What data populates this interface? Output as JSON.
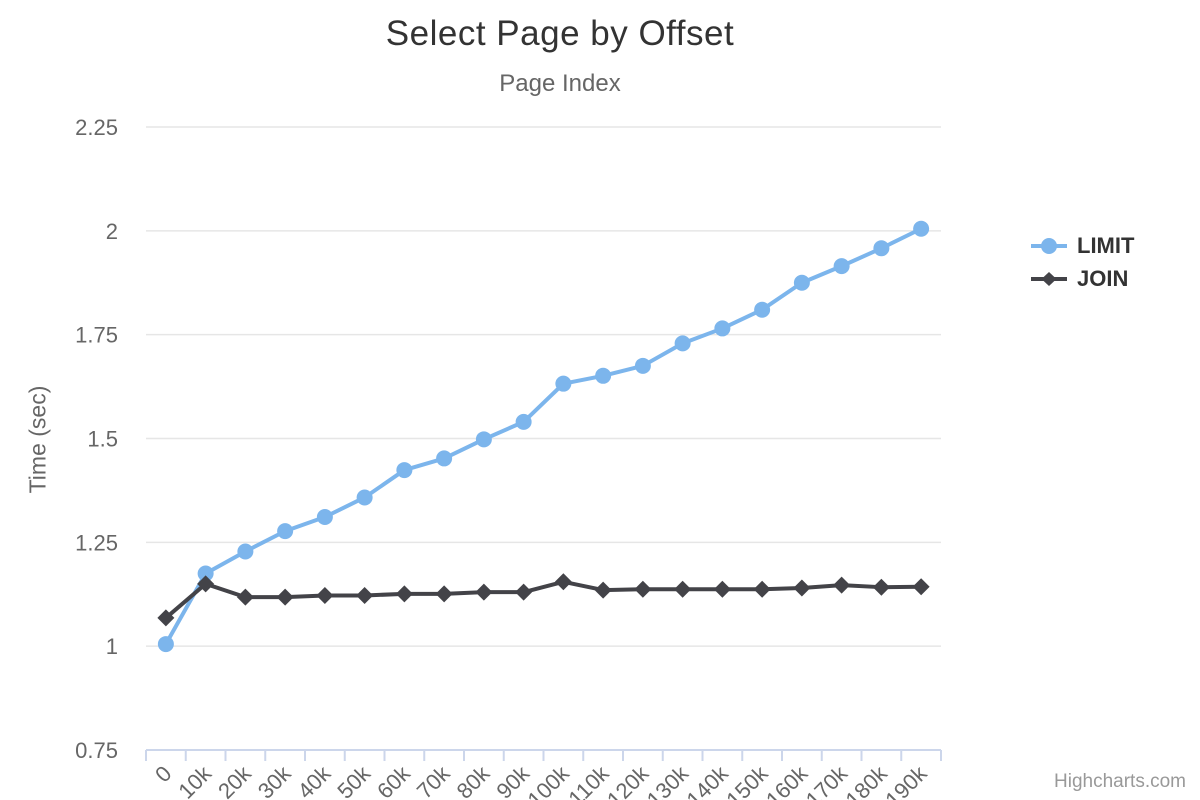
{
  "chart_data": {
    "type": "line",
    "title": "Select Page by Offset",
    "subtitle": "Page Index",
    "xlabel": "",
    "ylabel": "Time (sec)",
    "ylim": [
      0.75,
      2.25
    ],
    "ytick_step": 0.25,
    "grid": true,
    "legend_position": "right",
    "categories": [
      "0",
      "10k",
      "20k",
      "30k",
      "40k",
      "50k",
      "60k",
      "70k",
      "80k",
      "90k",
      "100k",
      "110k",
      "120k",
      "130k",
      "140k",
      "150k",
      "160k",
      "170k",
      "180k",
      "190k"
    ],
    "series": [
      {
        "name": "LIMIT",
        "color": "#7cb5ec",
        "marker": "circle",
        "values": [
          1.005,
          1.175,
          1.228,
          1.277,
          1.311,
          1.358,
          1.424,
          1.452,
          1.498,
          1.54,
          1.632,
          1.651,
          1.675,
          1.729,
          1.765,
          1.81,
          1.875,
          1.915,
          1.958,
          2.005
        ]
      },
      {
        "name": "JOIN",
        "color": "#434348",
        "marker": "diamond",
        "values": [
          1.068,
          1.15,
          1.118,
          1.118,
          1.122,
          1.122,
          1.126,
          1.126,
          1.13,
          1.13,
          1.155,
          1.135,
          1.137,
          1.137,
          1.137,
          1.137,
          1.14,
          1.147,
          1.142,
          1.143
        ]
      }
    ]
  },
  "axis_style": {
    "grid_color": "#e6e6e6",
    "axis_line_color": "#ccd6eb",
    "label_color": "#666666"
  },
  "credits": {
    "label": "Highcharts.com"
  }
}
